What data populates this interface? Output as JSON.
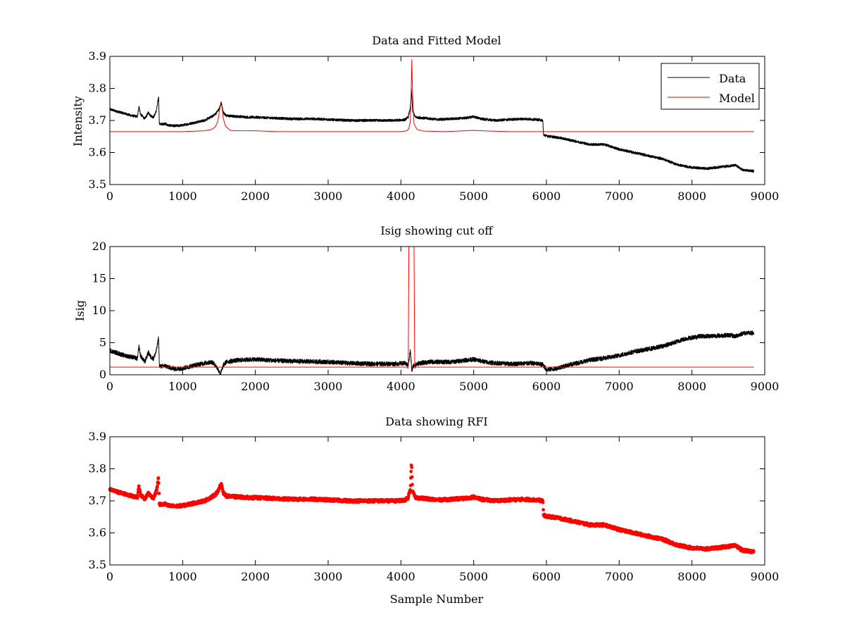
{
  "chart_data": [
    {
      "type": "line",
      "title": "Data and Fitted Model",
      "xlabel": "",
      "ylabel": "Intensity",
      "xlim": [
        0,
        9000
      ],
      "ylim": [
        3.5,
        3.9
      ],
      "xticks": [
        0,
        1000,
        2000,
        3000,
        4000,
        5000,
        6000,
        7000,
        8000,
        9000
      ],
      "yticks": [
        3.5,
        3.6,
        3.7,
        3.8,
        3.9
      ],
      "grid": false,
      "legend": {
        "placement": "top-right",
        "entries": [
          "Data",
          "Model"
        ]
      },
      "series": [
        {
          "name": "Data",
          "color": "#000000",
          "noise": 0.004,
          "x": [
            0,
            100,
            200,
            300,
            380,
            400,
            420,
            480,
            530,
            560,
            600,
            640,
            670,
            680,
            700,
            760,
            800,
            900,
            1000,
            1100,
            1200,
            1300,
            1400,
            1450,
            1500,
            1530,
            1560,
            1600,
            1700,
            1800,
            1900,
            2000,
            2200,
            2500,
            2800,
            3000,
            3300,
            3600,
            3900,
            4050,
            4100,
            4130,
            4145,
            4160,
            4200,
            4300,
            4500,
            4700,
            4900,
            5000,
            5100,
            5300,
            5500,
            5700,
            5900,
            5950,
            5960,
            6000,
            6200,
            6400,
            6600,
            6800,
            7000,
            7200,
            7400,
            7600,
            7800,
            8000,
            8200,
            8400,
            8500,
            8600,
            8700,
            8850
          ],
          "y": [
            3.735,
            3.728,
            3.722,
            3.715,
            3.712,
            3.745,
            3.72,
            3.705,
            3.725,
            3.715,
            3.71,
            3.73,
            3.775,
            3.69,
            3.688,
            3.69,
            3.685,
            3.683,
            3.685,
            3.69,
            3.695,
            3.7,
            3.712,
            3.72,
            3.735,
            3.755,
            3.725,
            3.715,
            3.713,
            3.712,
            3.71,
            3.71,
            3.708,
            3.705,
            3.705,
            3.703,
            3.7,
            3.7,
            3.7,
            3.702,
            3.71,
            3.74,
            3.795,
            3.73,
            3.71,
            3.708,
            3.703,
            3.705,
            3.708,
            3.712,
            3.705,
            3.7,
            3.703,
            3.705,
            3.702,
            3.7,
            3.655,
            3.652,
            3.645,
            3.635,
            3.625,
            3.625,
            3.61,
            3.6,
            3.59,
            3.58,
            3.562,
            3.553,
            3.55,
            3.555,
            3.558,
            3.56,
            3.545,
            3.542
          ]
        },
        {
          "name": "Model",
          "color": "#ff0000",
          "noise": 0,
          "x": [
            0,
            1000,
            1300,
            1400,
            1450,
            1480,
            1500,
            1520,
            1540,
            1560,
            1590,
            1650,
            1700,
            2000,
            2300,
            3500,
            4000,
            4080,
            4110,
            4130,
            4140,
            4150,
            4160,
            4180,
            4220,
            4300,
            4600,
            4800,
            5000,
            5200,
            5500,
            5950,
            8850
          ],
          "y": [
            3.665,
            3.665,
            3.668,
            3.672,
            3.68,
            3.695,
            3.72,
            3.75,
            3.745,
            3.705,
            3.682,
            3.67,
            3.668,
            3.668,
            3.665,
            3.665,
            3.665,
            3.668,
            3.675,
            3.7,
            3.78,
            3.89,
            3.78,
            3.69,
            3.672,
            3.667,
            3.665,
            3.667,
            3.669,
            3.667,
            3.665,
            3.665,
            3.665
          ]
        }
      ]
    },
    {
      "type": "line",
      "title": "Isig showing cut off",
      "xlabel": "",
      "ylabel": "Isig",
      "xlim": [
        0,
        9000
      ],
      "ylim": [
        0,
        20
      ],
      "xticks": [
        0,
        1000,
        2000,
        3000,
        4000,
        5000,
        6000,
        7000,
        8000,
        9000
      ],
      "yticks": [
        0,
        5,
        10,
        15,
        20
      ],
      "grid": false,
      "series": [
        {
          "color": "#000000",
          "noise": 0.35,
          "x": [
            0,
            100,
            200,
            300,
            380,
            400,
            420,
            480,
            530,
            560,
            600,
            640,
            670,
            680,
            700,
            760,
            800,
            900,
            1000,
            1100,
            1200,
            1300,
            1400,
            1450,
            1500,
            1520,
            1560,
            1600,
            1700,
            1800,
            2000,
            2300,
            2600,
            3000,
            3300,
            3600,
            3900,
            4050,
            4100,
            4130,
            4150,
            4170,
            4250,
            4400,
            4700,
            4900,
            5000,
            5200,
            5500,
            5800,
            5950,
            6000,
            6100,
            6300,
            6600,
            6800,
            7000,
            7200,
            7500,
            7700,
            7900,
            8100,
            8400,
            8500,
            8600,
            8700,
            8850
          ],
          "y": [
            3.8,
            3.4,
            3.0,
            2.8,
            2.5,
            4.5,
            3.0,
            2.0,
            3.5,
            2.8,
            2.5,
            3.8,
            5.8,
            1.5,
            1.3,
            1.4,
            1.2,
            0.9,
            1.0,
            1.3,
            1.6,
            1.8,
            2.0,
            1.5,
            0.6,
            0.1,
            1.5,
            2.0,
            2.2,
            2.3,
            2.4,
            2.2,
            2.1,
            2.0,
            1.8,
            1.7,
            1.7,
            1.8,
            1.5,
            3.8,
            0.6,
            1.4,
            1.8,
            2.0,
            2.0,
            2.3,
            2.4,
            1.9,
            1.7,
            1.8,
            1.6,
            0.8,
            0.9,
            1.5,
            2.3,
            2.6,
            3.0,
            3.6,
            4.2,
            4.8,
            5.6,
            6.0,
            6.1,
            6.2,
            6.0,
            6.5,
            6.5
          ]
        },
        {
          "color": "#ff0000",
          "noise": 0,
          "x": [
            0,
            4080,
            4100,
            4110,
            4180,
            4190,
            4200,
            8850
          ],
          "y": [
            1.2,
            1.2,
            1.0,
            20.5,
            20.5,
            1.0,
            1.2,
            1.2
          ]
        }
      ]
    },
    {
      "type": "scatter",
      "title": "Data showing RFI",
      "xlabel": "Sample Number",
      "ylabel": "",
      "xlim": [
        0,
        9000
      ],
      "ylim": [
        3.5,
        3.9
      ],
      "xticks": [
        0,
        1000,
        2000,
        3000,
        4000,
        5000,
        6000,
        7000,
        8000,
        9000
      ],
      "yticks": [
        3.5,
        3.6,
        3.7,
        3.8,
        3.9
      ],
      "grid": false,
      "series": [
        {
          "color": "#ff0000",
          "marker": "dot",
          "noise": 0.004,
          "x": [
            0,
            100,
            200,
            300,
            380,
            400,
            420,
            480,
            530,
            560,
            600,
            640,
            670,
            680,
            700,
            760,
            800,
            900,
            1000,
            1100,
            1200,
            1300,
            1400,
            1450,
            1500,
            1530,
            1560,
            1600,
            1700,
            1800,
            1900,
            2000,
            2200,
            2500,
            2800,
            3000,
            3300,
            3600,
            3900,
            4050,
            4100,
            4130,
            4145,
            4160,
            4200,
            4300,
            4500,
            4700,
            4900,
            5000,
            5100,
            5300,
            5500,
            5700,
            5900,
            5950,
            5960,
            6000,
            6200,
            6400,
            6600,
            6800,
            7000,
            7200,
            7400,
            7600,
            7800,
            8000,
            8200,
            8400,
            8500,
            8600,
            8700,
            8850
          ],
          "y": [
            3.735,
            3.728,
            3.722,
            3.715,
            3.712,
            3.745,
            3.72,
            3.705,
            3.725,
            3.715,
            3.71,
            3.73,
            3.775,
            3.69,
            3.688,
            3.69,
            3.685,
            3.683,
            3.685,
            3.69,
            3.695,
            3.7,
            3.712,
            3.72,
            3.735,
            3.755,
            3.725,
            3.715,
            3.713,
            3.712,
            3.71,
            3.71,
            3.708,
            3.705,
            3.705,
            3.703,
            3.7,
            3.7,
            3.7,
            3.702,
            3.71,
            3.74,
            3.82,
            3.73,
            3.71,
            3.708,
            3.703,
            3.705,
            3.708,
            3.712,
            3.705,
            3.7,
            3.703,
            3.705,
            3.702,
            3.7,
            3.655,
            3.652,
            3.645,
            3.635,
            3.625,
            3.625,
            3.61,
            3.6,
            3.59,
            3.58,
            3.562,
            3.553,
            3.55,
            3.555,
            3.558,
            3.56,
            3.545,
            3.542
          ]
        }
      ]
    }
  ]
}
